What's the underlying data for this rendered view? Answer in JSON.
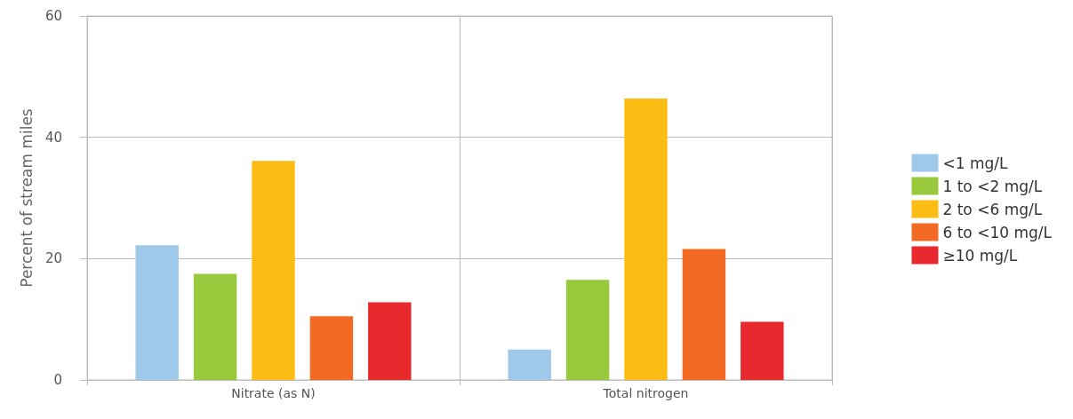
{
  "chart_data": {
    "type": "bar",
    "ylabel": "Percent of stream miles",
    "categories": [
      "Nitrate (as N)",
      "Total nitrogen"
    ],
    "series": [
      {
        "name": "<1 mg/L",
        "color": "#9fc9ea",
        "values": [
          22.2,
          5.0
        ]
      },
      {
        "name": "1 to <2 mg/L",
        "color": "#98c93c",
        "values": [
          17.5,
          16.5
        ]
      },
      {
        "name": "2 to <6 mg/L",
        "color": "#fbbc13",
        "values": [
          36.1,
          46.4
        ]
      },
      {
        "name": "6 to <10 mg/L",
        "color": "#f26a24",
        "values": [
          10.5,
          21.6
        ]
      },
      {
        "name": "≥10 mg/L",
        "color": "#e8292d",
        "values": [
          12.8,
          9.6
        ]
      }
    ],
    "ylim": [
      0,
      60
    ],
    "yticks": [
      0,
      20,
      40,
      60
    ],
    "grid": true,
    "legend": "right"
  }
}
